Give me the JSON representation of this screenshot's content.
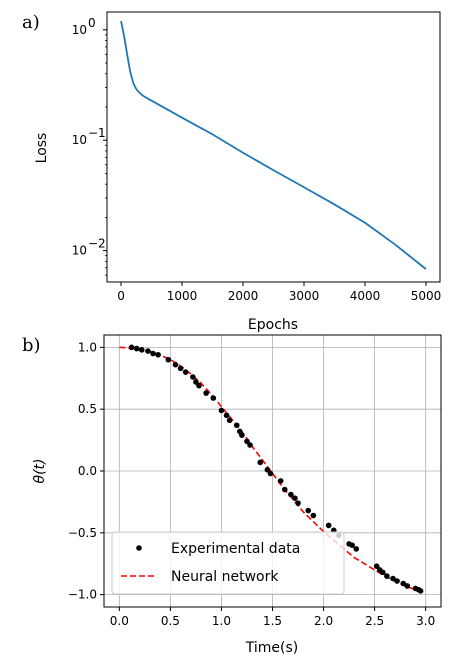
{
  "colors": {
    "loss_line": "#1f77b4",
    "experimental_marker": "#000000",
    "neural_line": "#ff0000",
    "grid": "#b0b0b0"
  },
  "chart_data": [
    {
      "panel_label": "a)",
      "type": "line",
      "xlabel": "Epochs",
      "ylabel": "Loss",
      "xlim": [
        -230,
        5230
      ],
      "ylim": [
        0.0052,
        1.45
      ],
      "yscale": "log",
      "grid": false,
      "x_ticks": [
        0,
        1000,
        2000,
        3000,
        4000,
        5000
      ],
      "x_tick_labels": [
        "0",
        "1000",
        "2000",
        "3000",
        "4000",
        "5000"
      ],
      "y_ticks": [
        1,
        0.1,
        0.01
      ],
      "y_tick_labels": [
        {
          "base": "10",
          "exp": "0"
        },
        {
          "base": "10",
          "exp": "−1"
        },
        {
          "base": "10",
          "exp": "−2"
        }
      ],
      "series": [
        {
          "x": [
            0,
            50,
            100,
            150,
            200,
            250,
            300,
            350,
            400,
            500,
            700,
            1000,
            1500,
            2000,
            2500,
            3000,
            3500,
            4000,
            4500,
            5000
          ],
          "y": [
            1.2,
            0.88,
            0.6,
            0.42,
            0.33,
            0.29,
            0.27,
            0.255,
            0.245,
            0.228,
            0.198,
            0.16,
            0.113,
            0.077,
            0.0535,
            0.0375,
            0.0262,
            0.0179,
            0.0113,
            0.0068
          ]
        }
      ]
    },
    {
      "panel_label": "b)",
      "type": "scatter",
      "xlabel": "Time(s)",
      "ylabel": "θ(t)",
      "xlim": [
        -0.15,
        3.15
      ],
      "ylim": [
        -1.1,
        1.1
      ],
      "grid": true,
      "x_ticks": [
        0.0,
        0.5,
        1.0,
        1.5,
        2.0,
        2.5,
        3.0
      ],
      "x_tick_labels": [
        "0.0",
        "0.5",
        "1.0",
        "1.5",
        "2.0",
        "2.5",
        "3.0"
      ],
      "y_ticks": [
        1.0,
        0.5,
        0.0,
        -0.5,
        -1.0
      ],
      "y_tick_labels": [
        "1.0",
        "0.5",
        "0.0",
        "−0.5",
        "−1.0"
      ],
      "legend": {
        "placement": "lower-left",
        "entries": [
          "Experimental data",
          "Neural network"
        ]
      },
      "series": [
        {
          "name": "Experimental data",
          "style": "markers",
          "x": [
            0.12,
            0.17,
            0.22,
            0.28,
            0.33,
            0.38,
            0.48,
            0.55,
            0.6,
            0.65,
            0.72,
            0.75,
            0.78,
            0.85,
            0.92,
            1.0,
            1.05,
            1.08,
            1.15,
            1.18,
            1.2,
            1.25,
            1.28,
            1.38,
            1.45,
            1.48,
            1.58,
            1.62,
            1.68,
            1.72,
            1.75,
            1.85,
            1.9,
            2.05,
            2.1,
            2.15,
            2.25,
            2.28,
            2.32,
            2.52,
            2.55,
            2.58,
            2.62,
            2.68,
            2.72,
            2.78,
            2.82,
            2.9,
            2.93,
            2.95
          ],
          "y": [
            1.0,
            0.99,
            0.98,
            0.97,
            0.95,
            0.94,
            0.9,
            0.86,
            0.83,
            0.8,
            0.76,
            0.72,
            0.69,
            0.63,
            0.59,
            0.49,
            0.45,
            0.41,
            0.37,
            0.32,
            0.29,
            0.24,
            0.21,
            0.07,
            0.01,
            -0.02,
            -0.08,
            -0.15,
            -0.19,
            -0.22,
            -0.26,
            -0.32,
            -0.36,
            -0.44,
            -0.48,
            -0.52,
            -0.59,
            -0.6,
            -0.63,
            -0.77,
            -0.8,
            -0.82,
            -0.85,
            -0.87,
            -0.89,
            -0.91,
            -0.93,
            -0.95,
            -0.96,
            -0.97
          ]
        },
        {
          "name": "Neural network",
          "style": "dashed",
          "x": [
            0.0,
            0.1,
            0.2,
            0.3,
            0.4,
            0.5,
            0.6,
            0.7,
            0.8,
            0.9,
            1.0,
            1.1,
            1.2,
            1.3,
            1.4,
            1.5,
            1.6,
            1.7,
            1.8,
            1.9,
            2.0,
            2.1,
            2.2,
            2.3,
            2.4,
            2.5,
            2.6,
            2.7,
            2.8,
            2.9,
            3.0
          ],
          "y": [
            1.0,
            0.995,
            0.985,
            0.967,
            0.938,
            0.9,
            0.85,
            0.785,
            0.71,
            0.62,
            0.52,
            0.42,
            0.32,
            0.2,
            0.09,
            -0.02,
            -0.13,
            -0.23,
            -0.33,
            -0.41,
            -0.49,
            -0.56,
            -0.63,
            -0.7,
            -0.75,
            -0.8,
            -0.85,
            -0.89,
            -0.93,
            -0.96,
            -0.99
          ]
        }
      ]
    }
  ]
}
